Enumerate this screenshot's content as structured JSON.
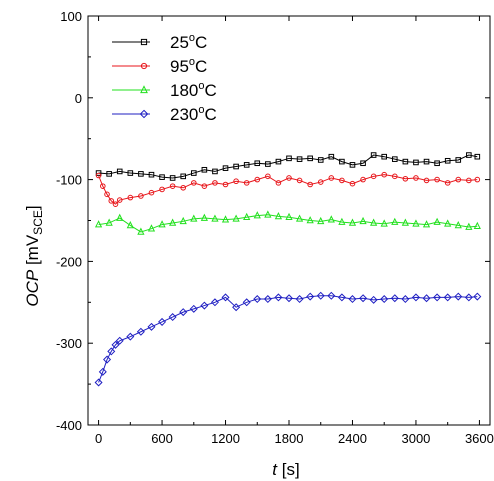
{
  "chart_data": {
    "type": "line",
    "xlim": [
      -100,
      3700
    ],
    "ylim": [
      -400,
      100
    ],
    "xticks": [
      0,
      600,
      1200,
      1800,
      2400,
      3000,
      3600
    ],
    "yticks": [
      -400,
      -300,
      -200,
      -100,
      0,
      100
    ],
    "xlabel": {
      "italic": "t",
      "rest": " [s]"
    },
    "ylabel": {
      "italic": "OCP",
      "pre": " [mV",
      "sub": "SCE",
      "post": "]"
    },
    "legend_position": "top-left",
    "grid": false,
    "series": [
      {
        "name": "25°C",
        "name_base": "25",
        "name_sup": "o",
        "name_unit": "C",
        "color": "#000000",
        "marker": "square",
        "x": [
          0,
          100,
          200,
          300,
          400,
          500,
          600,
          700,
          800,
          900,
          1000,
          1100,
          1200,
          1300,
          1400,
          1500,
          1600,
          1700,
          1800,
          1900,
          2000,
          2100,
          2200,
          2300,
          2400,
          2500,
          2600,
          2700,
          2800,
          2900,
          3000,
          3100,
          3200,
          3300,
          3400,
          3500,
          3580
        ],
        "y": [
          -92,
          -93,
          -90,
          -92,
          -93,
          -94,
          -97,
          -98,
          -96,
          -92,
          -88,
          -90,
          -86,
          -84,
          -82,
          -80,
          -81,
          -78,
          -74,
          -75,
          -74,
          -76,
          -72,
          -78,
          -82,
          -80,
          -70,
          -72,
          -75,
          -78,
          -79,
          -78,
          -80,
          -77,
          -76,
          -70,
          -72
        ]
      },
      {
        "name": "95°C",
        "name_base": "95",
        "name_sup": "o",
        "name_unit": "C",
        "color": "#e8161b",
        "marker": "circle",
        "x": [
          0,
          40,
          80,
          120,
          160,
          200,
          300,
          400,
          500,
          600,
          700,
          800,
          900,
          1000,
          1100,
          1200,
          1300,
          1400,
          1500,
          1600,
          1700,
          1800,
          1900,
          2000,
          2100,
          2200,
          2300,
          2400,
          2500,
          2600,
          2700,
          2800,
          2900,
          3000,
          3100,
          3200,
          3300,
          3400,
          3500,
          3580
        ],
        "y": [
          -95,
          -108,
          -118,
          -126,
          -130,
          -125,
          -122,
          -120,
          -116,
          -112,
          -108,
          -110,
          -104,
          -108,
          -104,
          -106,
          -102,
          -104,
          -100,
          -96,
          -104,
          -98,
          -101,
          -106,
          -103,
          -98,
          -101,
          -105,
          -100,
          -96,
          -94,
          -96,
          -99,
          -98,
          -101,
          -100,
          -104,
          -100,
          -101,
          -100
        ]
      },
      {
        "name": "180°C",
        "name_base": "180",
        "name_sup": "o",
        "name_unit": "C",
        "color": "#22e01e",
        "marker": "triangle",
        "x": [
          0,
          100,
          200,
          300,
          400,
          500,
          600,
          700,
          800,
          900,
          1000,
          1100,
          1200,
          1300,
          1400,
          1500,
          1600,
          1700,
          1800,
          1900,
          2000,
          2100,
          2200,
          2300,
          2400,
          2500,
          2600,
          2700,
          2800,
          2900,
          3000,
          3100,
          3200,
          3300,
          3400,
          3500,
          3580
        ],
        "y": [
          -155,
          -153,
          -147,
          -156,
          -164,
          -160,
          -155,
          -153,
          -151,
          -148,
          -147,
          -148,
          -149,
          -148,
          -146,
          -144,
          -143,
          -145,
          -146,
          -148,
          -150,
          -151,
          -149,
          -152,
          -153,
          -151,
          -153,
          -154,
          -152,
          -153,
          -154,
          -155,
          -152,
          -154,
          -156,
          -158,
          -157
        ]
      },
      {
        "name": "230°C",
        "name_base": "230",
        "name_sup": "o",
        "name_unit": "C",
        "color": "#1f1fc2",
        "marker": "diamond",
        "x": [
          0,
          40,
          80,
          120,
          160,
          200,
          300,
          400,
          500,
          600,
          700,
          800,
          900,
          1000,
          1100,
          1200,
          1300,
          1400,
          1500,
          1600,
          1700,
          1800,
          1900,
          2000,
          2100,
          2200,
          2300,
          2400,
          2500,
          2600,
          2700,
          2800,
          2900,
          3000,
          3100,
          3200,
          3300,
          3400,
          3500,
          3580
        ],
        "y": [
          -348,
          -335,
          -320,
          -310,
          -302,
          -297,
          -292,
          -286,
          -280,
          -274,
          -268,
          -262,
          -258,
          -254,
          -250,
          -244,
          -256,
          -250,
          -246,
          -246,
          -244,
          -245,
          -246,
          -243,
          -242,
          -242,
          -244,
          -246,
          -245,
          -247,
          -246,
          -245,
          -246,
          -244,
          -245,
          -244,
          -244,
          -243,
          -244,
          -243
        ]
      }
    ]
  }
}
